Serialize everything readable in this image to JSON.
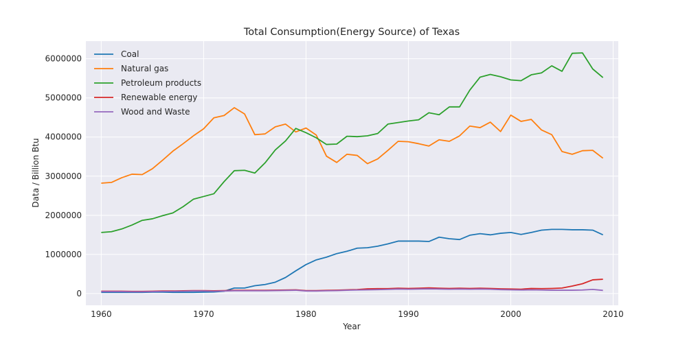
{
  "chart_data": {
    "type": "line",
    "title": "Total Consumption(Energy Source) of Texas",
    "xlabel": "Year",
    "ylabel": "Data / Billion Btu",
    "xlim": [
      1958.5,
      2010.5
    ],
    "ylim": [
      -300000,
      6450000
    ],
    "xticks": [
      1960,
      1970,
      1980,
      1990,
      2000,
      2010
    ],
    "yticks": [
      0,
      1000000,
      2000000,
      3000000,
      4000000,
      5000000,
      6000000
    ],
    "xtick_labels": [
      "1960",
      "1970",
      "1980",
      "1990",
      "2000",
      "2010"
    ],
    "ytick_labels": [
      "0",
      "1000000",
      "2000000",
      "3000000",
      "4000000",
      "5000000",
      "6000000"
    ],
    "grid": true,
    "legend_position": "top-left",
    "x": [
      1960,
      1961,
      1962,
      1963,
      1964,
      1965,
      1966,
      1967,
      1968,
      1969,
      1970,
      1971,
      1972,
      1973,
      1974,
      1975,
      1976,
      1977,
      1978,
      1979,
      1980,
      1981,
      1982,
      1983,
      1984,
      1985,
      1986,
      1987,
      1988,
      1989,
      1990,
      1991,
      1992,
      1993,
      1994,
      1995,
      1996,
      1997,
      1998,
      1999,
      2000,
      2001,
      2002,
      2003,
      2004,
      2005,
      2006,
      2007,
      2008,
      2009
    ],
    "series": [
      {
        "name": "Coal",
        "color": "#1f77b4",
        "values": [
          30000,
          30000,
          30000,
          30000,
          30000,
          35000,
          35000,
          30000,
          30000,
          30000,
          35000,
          40000,
          60000,
          140000,
          140000,
          200000,
          230000,
          290000,
          410000,
          580000,
          740000,
          860000,
          930000,
          1020000,
          1080000,
          1160000,
          1170000,
          1210000,
          1270000,
          1340000,
          1340000,
          1340000,
          1330000,
          1440000,
          1400000,
          1380000,
          1490000,
          1530000,
          1500000,
          1540000,
          1560000,
          1510000,
          1560000,
          1620000,
          1640000,
          1640000,
          1630000,
          1630000,
          1620000,
          1500000
        ]
      },
      {
        "name": "Natural gas",
        "color": "#ff7f0e",
        "values": [
          2820000,
          2840000,
          2960000,
          3050000,
          3040000,
          3190000,
          3410000,
          3640000,
          3830000,
          4030000,
          4210000,
          4490000,
          4550000,
          4750000,
          4590000,
          4060000,
          4080000,
          4260000,
          4330000,
          4130000,
          4230000,
          4050000,
          3510000,
          3350000,
          3560000,
          3530000,
          3320000,
          3440000,
          3660000,
          3890000,
          3880000,
          3830000,
          3770000,
          3930000,
          3890000,
          4030000,
          4280000,
          4240000,
          4380000,
          4140000,
          4560000,
          4400000,
          4450000,
          4180000,
          4060000,
          3630000,
          3560000,
          3650000,
          3660000,
          3460000
        ]
      },
      {
        "name": "Petroleum products",
        "color": "#2ca02c",
        "values": [
          1560000,
          1580000,
          1650000,
          1750000,
          1870000,
          1910000,
          1990000,
          2060000,
          2220000,
          2410000,
          2480000,
          2550000,
          2860000,
          3140000,
          3150000,
          3080000,
          3340000,
          3670000,
          3900000,
          4220000,
          4110000,
          3980000,
          3810000,
          3820000,
          4020000,
          4010000,
          4030000,
          4090000,
          4330000,
          4370000,
          4410000,
          4440000,
          4620000,
          4570000,
          4770000,
          4770000,
          5200000,
          5530000,
          5600000,
          5540000,
          5460000,
          5440000,
          5590000,
          5640000,
          5820000,
          5680000,
          6140000,
          6150000,
          5740000,
          5520000
        ]
      },
      {
        "name": "Renewable energy",
        "color": "#d62728",
        "values": [
          60000,
          60000,
          60000,
          55000,
          55000,
          60000,
          65000,
          65000,
          70000,
          75000,
          75000,
          70000,
          75000,
          80000,
          80000,
          80000,
          80000,
          85000,
          90000,
          95000,
          75000,
          75000,
          80000,
          85000,
          95000,
          100000,
          120000,
          125000,
          125000,
          135000,
          130000,
          135000,
          145000,
          135000,
          130000,
          135000,
          130000,
          135000,
          130000,
          120000,
          115000,
          110000,
          130000,
          125000,
          130000,
          140000,
          190000,
          250000,
          350000,
          365000
        ]
      },
      {
        "name": "Wood and Waste",
        "color": "#9467bd",
        "values": [
          50000,
          50000,
          50000,
          45000,
          45000,
          50000,
          55000,
          55000,
          60000,
          65000,
          65000,
          60000,
          65000,
          70000,
          70000,
          70000,
          70000,
          75000,
          80000,
          85000,
          65000,
          65000,
          70000,
          75000,
          85000,
          90000,
          95000,
          100000,
          105000,
          115000,
          110000,
          115000,
          120000,
          115000,
          110000,
          115000,
          110000,
          115000,
          110000,
          100000,
          95000,
          90000,
          95000,
          90000,
          85000,
          85000,
          85000,
          90000,
          105000,
          80000
        ]
      }
    ]
  }
}
